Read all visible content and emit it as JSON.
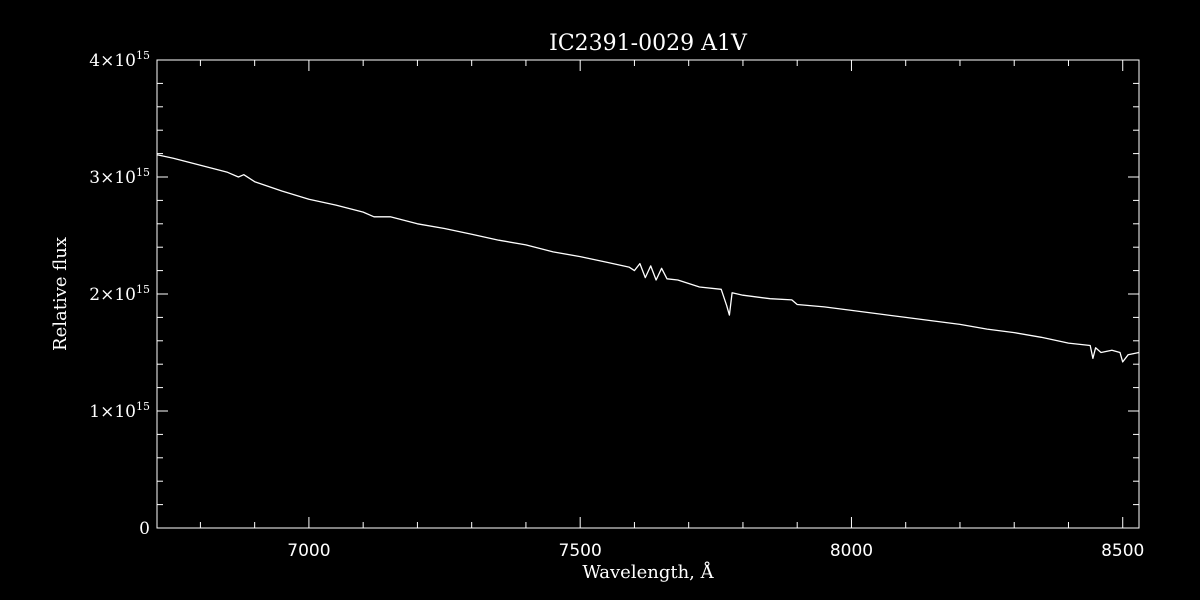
{
  "chart_data": {
    "type": "line",
    "title": "IC2391-0029  A1V",
    "xlabel": "Wavelength, Å",
    "ylabel": "Relative flux",
    "xlim": [
      6720,
      8530
    ],
    "ylim": [
      0,
      4000000000000000.0
    ],
    "x_ticks": [
      {
        "value": 7000,
        "label": "7000"
      },
      {
        "value": 7500,
        "label": "7500"
      },
      {
        "value": 8000,
        "label": "8000"
      },
      {
        "value": 8500,
        "label": "8500"
      }
    ],
    "y_ticks": [
      {
        "value": 0,
        "mantissa": "0",
        "exp": ""
      },
      {
        "value": 1000000000000000.0,
        "mantissa": "1×10",
        "exp": "15"
      },
      {
        "value": 2000000000000000.0,
        "mantissa": "2×10",
        "exp": "15"
      },
      {
        "value": 3000000000000000.0,
        "mantissa": "3×10",
        "exp": "15"
      },
      {
        "value": 4000000000000000.0,
        "mantissa": "4×10",
        "exp": "15"
      }
    ],
    "series": [
      {
        "color": "#ffffff",
        "x": [
          6720,
          6750,
          6800,
          6850,
          6870,
          6880,
          6900,
          6950,
          7000,
          7050,
          7100,
          7120,
          7150,
          7200,
          7250,
          7300,
          7350,
          7400,
          7450,
          7500,
          7550,
          7590,
          7600,
          7610,
          7620,
          7630,
          7640,
          7650,
          7660,
          7680,
          7700,
          7720,
          7760,
          7770,
          7775,
          7780,
          7800,
          7850,
          7890,
          7900,
          7950,
          8000,
          8050,
          8100,
          8150,
          8200,
          8250,
          8300,
          8350,
          8400,
          8440,
          8445,
          8450,
          8460,
          8480,
          8495,
          8500,
          8510,
          8530
        ],
        "y": [
          3190000000000000.0,
          3160000000000000.0,
          3100000000000000.0,
          3040000000000000.0,
          3000000000000000.0,
          3020000000000000.0,
          2960000000000000.0,
          2880000000000000.0,
          2810000000000000.0,
          2760000000000000.0,
          2700000000000000.0,
          2660000000000000.0,
          2660000000000000.0,
          2600000000000000.0,
          2560000000000000.0,
          2510000000000000.0,
          2460000000000000.0,
          2420000000000000.0,
          2360000000000000.0,
          2320000000000000.0,
          2270000000000000.0,
          2230000000000000.0,
          2200000000000000.0,
          2260000000000000.0,
          2140000000000000.0,
          2240000000000000.0,
          2120000000000000.0,
          2220000000000000.0,
          2130000000000000.0,
          2120000000000000.0,
          2090000000000000.0,
          2060000000000000.0,
          2040000000000000.0,
          1900000000000000.0,
          1820000000000000.0,
          2010000000000000.0,
          1990000000000000.0,
          1960000000000000.0,
          1950000000000000.0,
          1910000000000000.0,
          1890000000000000.0,
          1860000000000000.0,
          1830000000000000.0,
          1800000000000000.0,
          1770000000000000.0,
          1740000000000000.0,
          1700000000000000.0,
          1670000000000000.0,
          1630000000000000.0,
          1580000000000000.0,
          1560000000000000.0,
          1450000000000000.0,
          1540000000000000.0,
          1500000000000000.0,
          1520000000000000.0,
          1500000000000000.0,
          1420000000000000.0,
          1480000000000000.0,
          1500000000000000.0
        ]
      }
    ]
  }
}
